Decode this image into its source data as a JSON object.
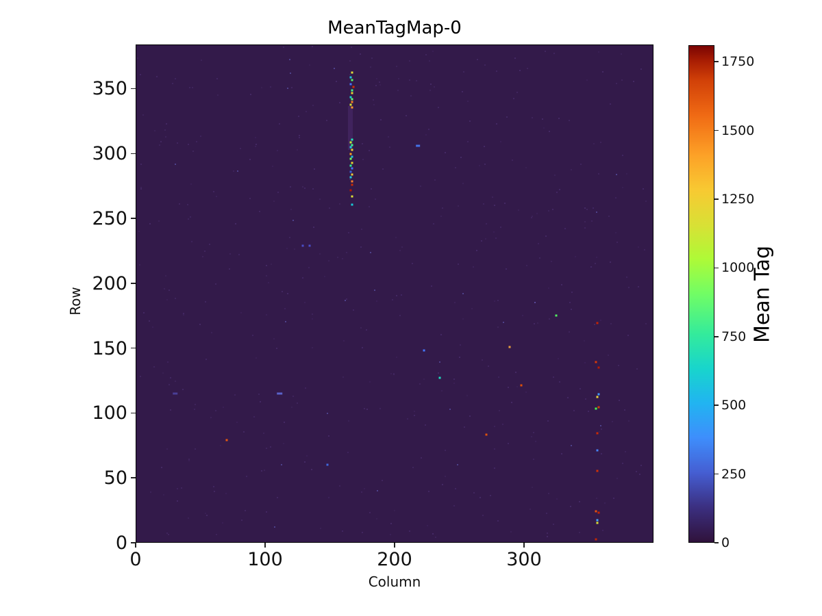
{
  "chart_data": {
    "type": "heatmap",
    "title": "MeanTagMap-0",
    "xlabel": "Column",
    "ylabel": "Row",
    "xlim": [
      0,
      400
    ],
    "ylim": [
      0,
      384
    ],
    "x_ticks": [
      0,
      100,
      200,
      300
    ],
    "y_ticks": [
      0,
      50,
      100,
      150,
      200,
      250,
      300,
      350
    ],
    "grid": false,
    "background_value": 0,
    "background_color": "#331a4a",
    "colormap": "turbo",
    "colorbar": {
      "label": "Mean Tag",
      "ticks": [
        0,
        250,
        500,
        750,
        1000,
        1250,
        1500,
        1750
      ],
      "vmin": 0,
      "vmax": 1810,
      "gradient_stops": [
        [
          0.0,
          "#30123b"
        ],
        [
          0.07,
          "#3b2f80"
        ],
        [
          0.14,
          "#455ed2"
        ],
        [
          0.21,
          "#3e8efc"
        ],
        [
          0.28,
          "#21b4f1"
        ],
        [
          0.35,
          "#18d5cc"
        ],
        [
          0.42,
          "#34eb9b"
        ],
        [
          0.5,
          "#71fd65"
        ],
        [
          0.57,
          "#aefa37"
        ],
        [
          0.64,
          "#d9e035"
        ],
        [
          0.71,
          "#f8c932"
        ],
        [
          0.78,
          "#fda127"
        ],
        [
          0.86,
          "#f06a14"
        ],
        [
          0.93,
          "#d14108"
        ],
        [
          0.97,
          "#a81d03"
        ],
        [
          1.0,
          "#7a0403"
        ]
      ]
    },
    "faint_band": {
      "col": 164,
      "row_start": 303,
      "row_end": 337
    },
    "hot_pixels": [
      {
        "col": 167,
        "row": 363,
        "color": "#e1dd37"
      },
      {
        "col": 166,
        "row": 359,
        "color": "#22c9de"
      },
      {
        "col": 167,
        "row": 357,
        "color": "#56f667"
      },
      {
        "col": 166,
        "row": 354,
        "color": "#4576fe"
      },
      {
        "col": 168,
        "row": 352,
        "color": "#d23105"
      },
      {
        "col": 167,
        "row": 349,
        "color": "#45f48c"
      },
      {
        "col": 167,
        "row": 347,
        "color": "#e8d430"
      },
      {
        "col": 166,
        "row": 344,
        "color": "#18d6cc"
      },
      {
        "col": 167,
        "row": 342,
        "color": "#63fb75"
      },
      {
        "col": 167,
        "row": 340,
        "color": "#fb8122"
      },
      {
        "col": 166,
        "row": 338,
        "color": "#d4e735"
      },
      {
        "col": 167,
        "row": 336,
        "color": "#f9962d"
      },
      {
        "col": 167,
        "row": 311,
        "color": "#21e5ba"
      },
      {
        "col": 166,
        "row": 309,
        "color": "#c3f134"
      },
      {
        "col": 167,
        "row": 307,
        "color": "#45f48c"
      },
      {
        "col": 166,
        "row": 305,
        "color": "#1ecfe0"
      },
      {
        "col": 167,
        "row": 303,
        "color": "#ecd12e"
      },
      {
        "col": 166,
        "row": 300,
        "color": "#fb9e24"
      },
      {
        "col": 167,
        "row": 298,
        "color": "#27bce1"
      },
      {
        "col": 166,
        "row": 296,
        "color": "#6cfd5e"
      },
      {
        "col": 167,
        "row": 293,
        "color": "#e7d62f"
      },
      {
        "col": 166,
        "row": 291,
        "color": "#2ff09a"
      },
      {
        "col": 167,
        "row": 289,
        "color": "#4576fe"
      },
      {
        "col": 166,
        "row": 286,
        "color": "#3d63d9"
      },
      {
        "col": 167,
        "row": 284,
        "color": "#f0cc3a"
      },
      {
        "col": 166,
        "row": 282,
        "color": "#1fc9dd"
      },
      {
        "col": 167,
        "row": 279,
        "color": "#f8802e"
      },
      {
        "col": 167,
        "row": 276,
        "color": "#cc2b04"
      },
      {
        "col": 166,
        "row": 272,
        "color": "#b11901"
      },
      {
        "col": 167,
        "row": 267,
        "color": "#dfe236"
      },
      {
        "col": 167,
        "row": 261,
        "color": "#18ccd8"
      },
      {
        "col": 357,
        "row": 169,
        "color": "#c42503"
      },
      {
        "col": 356,
        "row": 139,
        "color": "#d93807"
      },
      {
        "col": 358,
        "row": 135,
        "color": "#b71c02"
      },
      {
        "col": 358,
        "row": 114,
        "color": "#3e9bfe"
      },
      {
        "col": 357,
        "row": 112,
        "color": "#e9d539"
      },
      {
        "col": 356,
        "row": 103,
        "color": "#49f84e"
      },
      {
        "col": 358,
        "row": 104,
        "color": "#d34005"
      },
      {
        "col": 357,
        "row": 84,
        "color": "#cc2b04"
      },
      {
        "col": 357,
        "row": 71,
        "color": "#4682f4"
      },
      {
        "col": 357,
        "row": 55,
        "color": "#d23105"
      },
      {
        "col": 356,
        "row": 24,
        "color": "#e84e0c"
      },
      {
        "col": 358,
        "row": 23,
        "color": "#c42503"
      },
      {
        "col": 357,
        "row": 17,
        "color": "#46a5fb"
      },
      {
        "col": 357,
        "row": 15,
        "color": "#d9e035"
      },
      {
        "col": 356,
        "row": 2,
        "color": "#c22803"
      },
      {
        "col": 325,
        "row": 175,
        "color": "#51f060"
      },
      {
        "col": 289,
        "row": 151,
        "color": "#f2a431"
      },
      {
        "col": 298,
        "row": 121,
        "color": "#e04f08"
      },
      {
        "col": 271,
        "row": 83,
        "color": "#e0520a"
      },
      {
        "col": 223,
        "row": 148,
        "color": "#4576fe"
      },
      {
        "col": 235,
        "row": 127,
        "color": "#1ddfc0"
      },
      {
        "col": 218,
        "row": 306,
        "color": "#4472e8",
        "w": 3
      },
      {
        "col": 70,
        "row": 79,
        "color": "#e8590e"
      },
      {
        "col": 148,
        "row": 60,
        "color": "#3f68de"
      },
      {
        "col": 129,
        "row": 229,
        "color": "#4b4dc8"
      },
      {
        "col": 134,
        "row": 229,
        "color": "#4b4dc8"
      },
      {
        "col": 30,
        "row": 115,
        "color": "#4a3f96",
        "w": 4
      },
      {
        "col": 111,
        "row": 115,
        "color": "#5a63c9",
        "w": 4
      }
    ]
  }
}
